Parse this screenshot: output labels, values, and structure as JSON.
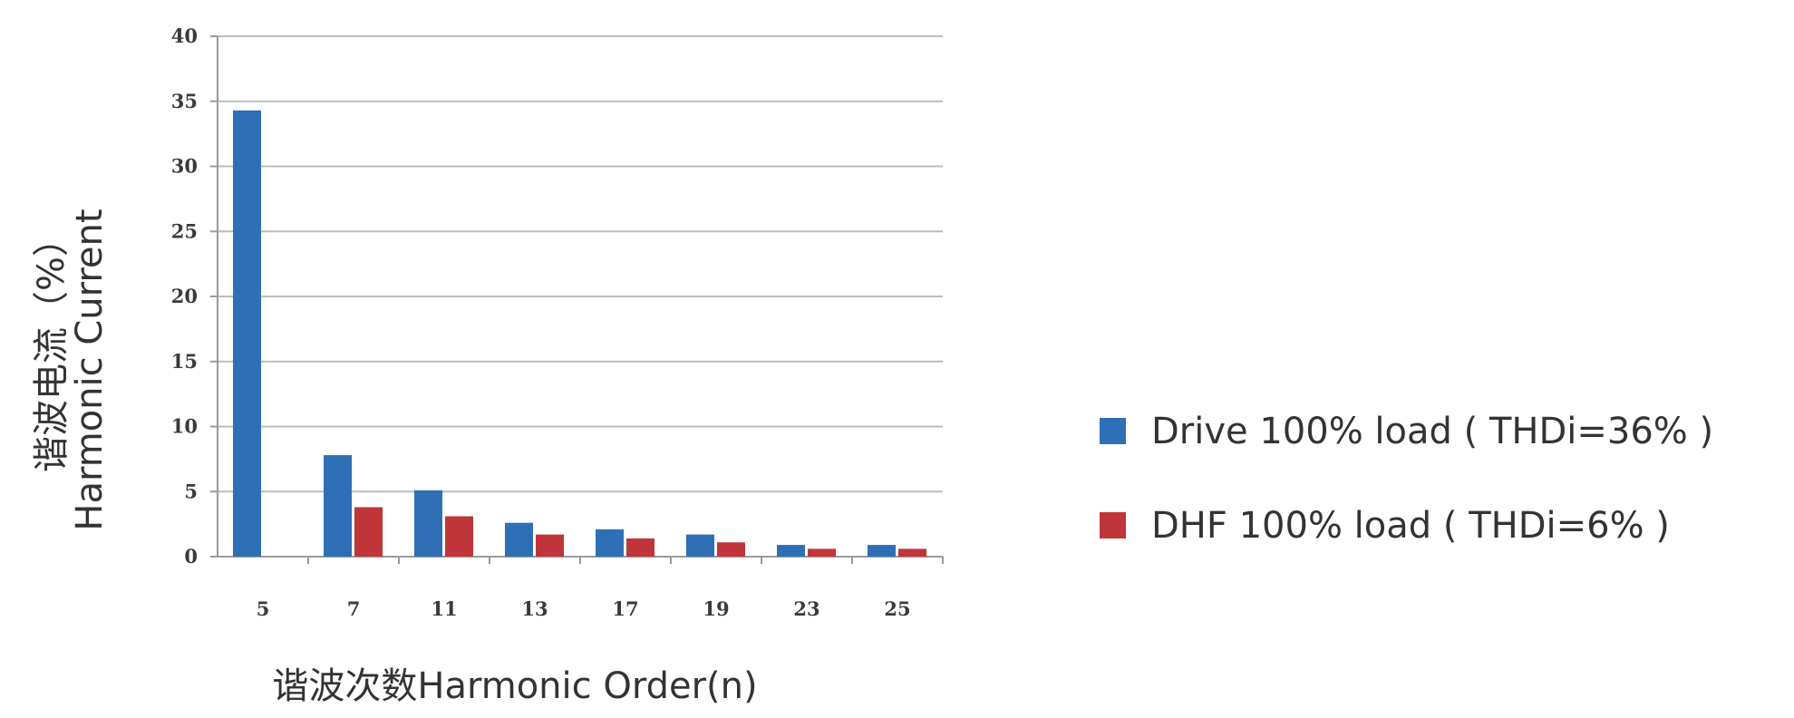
{
  "chart_data": {
    "type": "bar",
    "categories": [
      "5",
      "7",
      "11",
      "13",
      "17",
      "19",
      "23",
      "25"
    ],
    "series": [
      {
        "name": "Drive 100% load ( THDi=36% )",
        "color": "#2e6fb6",
        "values": [
          34.3,
          7.8,
          5.1,
          2.6,
          2.1,
          1.7,
          0.9,
          0.9
        ]
      },
      {
        "name": "DHF 100% load ( THDi=6% )",
        "color": "#c0353a",
        "values": [
          0,
          3.8,
          3.1,
          1.7,
          1.4,
          1.1,
          0.6,
          0.6
        ]
      }
    ],
    "yticks": [
      "0",
      "5",
      "10",
      "15",
      "20",
      "25",
      "30",
      "35",
      "40"
    ],
    "ylim": [
      0,
      40
    ],
    "xlabel": "谐波次数Harmonic  Order(n)",
    "ylabel": {
      "line1": "谐波电流（%）",
      "line2": "Harmonic  Current"
    },
    "grid": "horizontal",
    "legend_position": "right"
  }
}
